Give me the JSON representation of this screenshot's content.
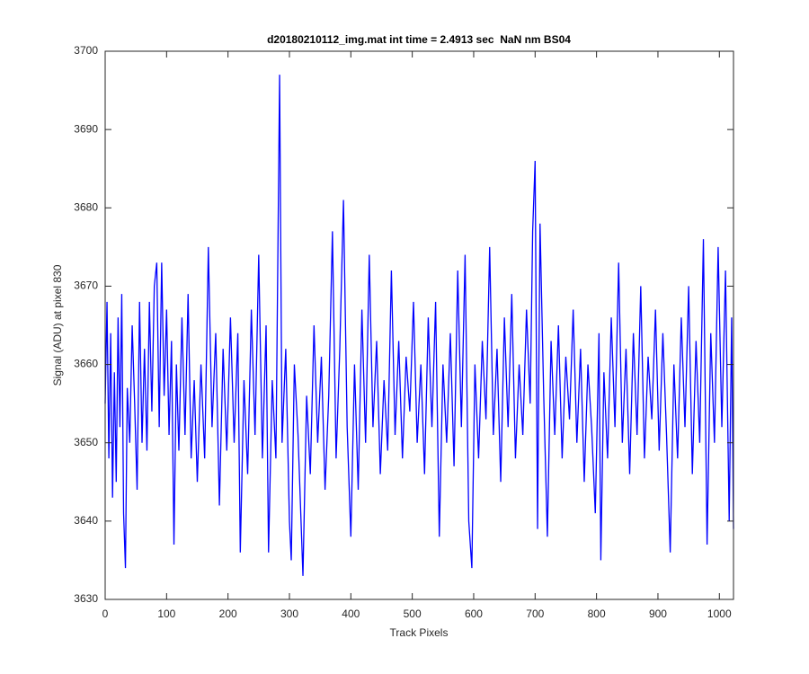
{
  "chart_data": {
    "type": "line",
    "title": "d20180210112_img.mat int time = 2.4913 sec  NaN nm BS04",
    "x_label": "Track Pixels",
    "y_label": "Signal (ADU) at pixel 830",
    "xlim": [
      0,
      1023
    ],
    "ylim": [
      3630,
      3700
    ],
    "xticks": [
      0,
      100,
      200,
      300,
      400,
      500,
      600,
      700,
      800,
      900,
      1000
    ],
    "yticks": [
      3630,
      3640,
      3650,
      3660,
      3670,
      3680,
      3690,
      3700
    ],
    "x": [
      0,
      3,
      6,
      9,
      12,
      15,
      18,
      21,
      24,
      27,
      30,
      33,
      36,
      40,
      44,
      48,
      52,
      56,
      60,
      64,
      68,
      72,
      76,
      80,
      84,
      88,
      92,
      96,
      100,
      104,
      108,
      112,
      116,
      120,
      125,
      130,
      135,
      140,
      145,
      150,
      156,
      162,
      168,
      174,
      180,
      186,
      192,
      198,
      204,
      210,
      216,
      220,
      226,
      232,
      238,
      244,
      250,
      256,
      262,
      266,
      272,
      278,
      284,
      288,
      294,
      300,
      303,
      308,
      314,
      322,
      328,
      334,
      340,
      346,
      352,
      358,
      364,
      370,
      376,
      382,
      388,
      394,
      400,
      406,
      412,
      418,
      424,
      430,
      436,
      442,
      448,
      454,
      460,
      466,
      472,
      478,
      484,
      490,
      496,
      502,
      508,
      514,
      520,
      526,
      532,
      538,
      544,
      550,
      556,
      562,
      568,
      574,
      580,
      586,
      592,
      597,
      602,
      608,
      614,
      620,
      626,
      632,
      638,
      644,
      650,
      656,
      662,
      668,
      674,
      680,
      686,
      692,
      696,
      700,
      704,
      708,
      714,
      720,
      726,
      732,
      738,
      744,
      750,
      756,
      762,
      768,
      774,
      780,
      786,
      792,
      798,
      804,
      807,
      812,
      818,
      824,
      830,
      836,
      842,
      848,
      854,
      860,
      866,
      872,
      878,
      884,
      890,
      896,
      902,
      908,
      914,
      920,
      926,
      932,
      938,
      944,
      950,
      956,
      962,
      968,
      974,
      980,
      986,
      992,
      998,
      1004,
      1010,
      1016,
      1020,
      1023
    ],
    "series": [
      {
        "name": "signal",
        "color": "#0000ff",
        "values": [
          3655,
          3668,
          3648,
          3664,
          3643,
          3659,
          3645,
          3666,
          3652,
          3669,
          3641,
          3634,
          3657,
          3650,
          3665,
          3655,
          3644,
          3668,
          3650,
          3662,
          3649,
          3668,
          3654,
          3670,
          3673,
          3652,
          3673,
          3656,
          3667,
          3651,
          3663,
          3637,
          3660,
          3649,
          3666,
          3651,
          3669,
          3648,
          3658,
          3645,
          3660,
          3648,
          3675,
          3652,
          3664,
          3642,
          3662,
          3649,
          3666,
          3650,
          3664,
          3636,
          3658,
          3646,
          3667,
          3651,
          3674,
          3648,
          3665,
          3636,
          3658,
          3648,
          3697,
          3650,
          3662,
          3640,
          3635,
          3660,
          3651,
          3633,
          3656,
          3646,
          3665,
          3650,
          3661,
          3644,
          3656,
          3677,
          3648,
          3662,
          3681,
          3652,
          3638,
          3660,
          3644,
          3667,
          3650,
          3674,
          3652,
          3663,
          3646,
          3658,
          3649,
          3672,
          3651,
          3663,
          3648,
          3661,
          3654,
          3668,
          3650,
          3660,
          3646,
          3666,
          3652,
          3668,
          3638,
          3660,
          3650,
          3664,
          3647,
          3672,
          3652,
          3674,
          3640,
          3634,
          3660,
          3648,
          3663,
          3653,
          3675,
          3651,
          3662,
          3645,
          3666,
          3652,
          3669,
          3648,
          3660,
          3651,
          3667,
          3655,
          3677,
          3686,
          3639,
          3678,
          3656,
          3638,
          3663,
          3651,
          3665,
          3648,
          3661,
          3653,
          3667,
          3650,
          3662,
          3645,
          3660,
          3652,
          3641,
          3664,
          3635,
          3659,
          3648,
          3666,
          3652,
          3673,
          3650,
          3662,
          3646,
          3664,
          3651,
          3670,
          3648,
          3661,
          3653,
          3667,
          3649,
          3664,
          3651,
          3636,
          3660,
          3648,
          3666,
          3652,
          3670,
          3646,
          3663,
          3650,
          3676,
          3637,
          3664,
          3650,
          3675,
          3652,
          3672,
          3640,
          3666,
          3639
        ]
      }
    ]
  }
}
